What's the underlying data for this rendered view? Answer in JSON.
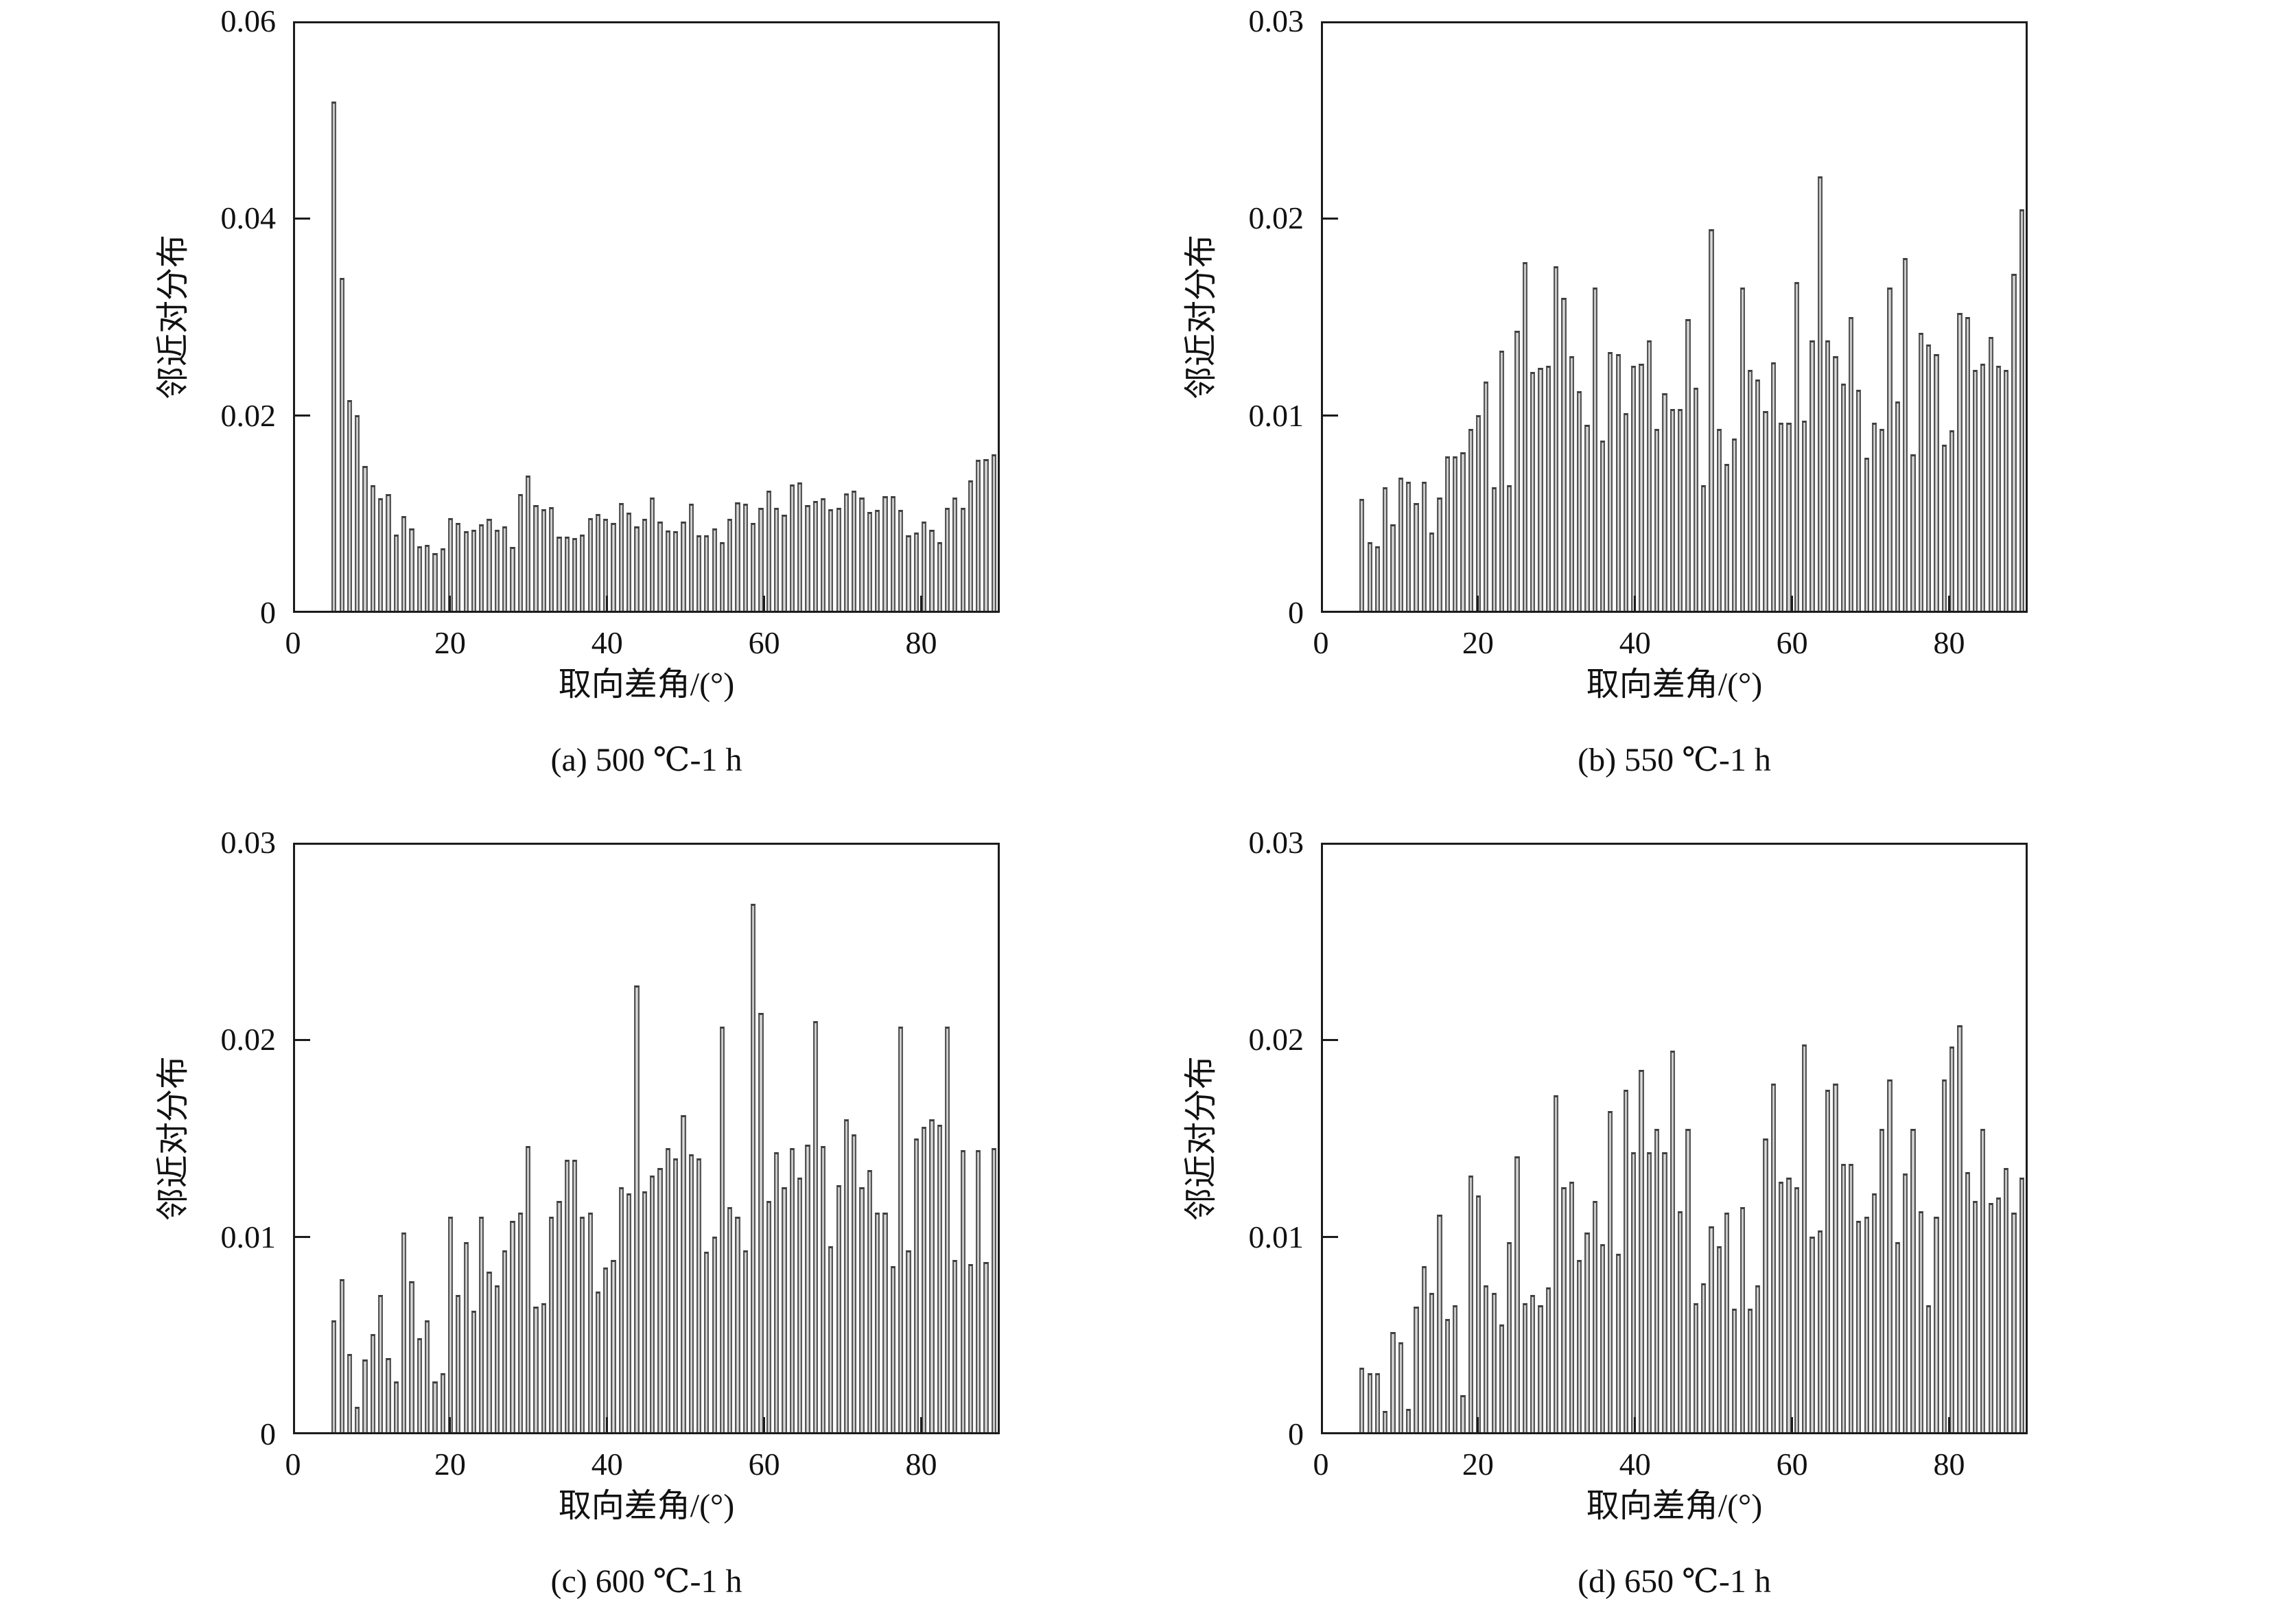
{
  "figure": {
    "background": "#ffffff",
    "bar_fill_light": "#efefef",
    "bar_fill_mid": "#cfcfcf",
    "bar_fill_dark": "#8f8f8f",
    "bar_edge": "#565656",
    "axis_color": "#1c1c1c",
    "text_color": "#111111"
  },
  "chart_data": [
    {
      "id": "a",
      "type": "bar",
      "title": "(a) 500 ℃-1 h",
      "xlabel": "取向差角/(°)",
      "ylabel": "邻近对分布",
      "xlim": [
        0,
        90
      ],
      "ylim": [
        0,
        0.06
      ],
      "x_ticks": [
        0,
        20,
        40,
        60,
        80
      ],
      "x_tick_labels": [
        "0",
        "20",
        "40",
        "60",
        "80"
      ],
      "y_ticks": [
        0,
        0.02,
        0.04,
        0.06
      ],
      "y_tick_labels": [
        "0",
        "0.02",
        "0.04",
        "0.06"
      ],
      "grid": false,
      "legend": null,
      "bin_start": 5,
      "bin_width": 1,
      "values": [
        0.052,
        0.034,
        0.0215,
        0.02,
        0.0148,
        0.0128,
        0.0115,
        0.0119,
        0.0078,
        0.0097,
        0.0084,
        0.0066,
        0.0067,
        0.0059,
        0.0064,
        0.0095,
        0.009,
        0.0081,
        0.0083,
        0.0088,
        0.0094,
        0.0083,
        0.0086,
        0.0065,
        0.0119,
        0.0138,
        0.0108,
        0.0104,
        0.0106,
        0.0076,
        0.0076,
        0.0074,
        0.0078,
        0.0095,
        0.0099,
        0.0094,
        0.009,
        0.011,
        0.01,
        0.0086,
        0.0094,
        0.0116,
        0.0091,
        0.0082,
        0.0081,
        0.0091,
        0.0109,
        0.0077,
        0.0077,
        0.0084,
        0.007,
        0.0094,
        0.0111,
        0.0109,
        0.009,
        0.0105,
        0.0123,
        0.0105,
        0.0098,
        0.0129,
        0.0131,
        0.0108,
        0.0112,
        0.0115,
        0.0104,
        0.0105,
        0.012,
        0.0123,
        0.0116,
        0.0101,
        0.0103,
        0.0117,
        0.0117,
        0.0103,
        0.0077,
        0.008,
        0.0091,
        0.0083,
        0.007,
        0.0105,
        0.0116,
        0.0105,
        0.0133,
        0.0154,
        0.0155,
        0.016
      ]
    },
    {
      "id": "b",
      "type": "bar",
      "title": "(b) 550 ℃-1 h",
      "xlabel": "取向差角/(°)",
      "ylabel": "邻近对分布",
      "xlim": [
        0,
        90
      ],
      "ylim": [
        0,
        0.03
      ],
      "x_ticks": [
        0,
        20,
        40,
        60,
        80
      ],
      "x_tick_labels": [
        "0",
        "20",
        "40",
        "60",
        "80"
      ],
      "y_ticks": [
        0,
        0.01,
        0.02,
        0.03
      ],
      "y_tick_labels": [
        "0",
        "0.01",
        "0.02",
        "0.03"
      ],
      "grid": false,
      "legend": null,
      "bin_start": 5,
      "bin_width": 1,
      "values": [
        0.0057,
        0.0035,
        0.0033,
        0.0063,
        0.0044,
        0.0068,
        0.0066,
        0.0055,
        0.0066,
        0.004,
        0.0058,
        0.0079,
        0.0079,
        0.0081,
        0.0093,
        0.01,
        0.0117,
        0.0063,
        0.0133,
        0.0064,
        0.0143,
        0.0178,
        0.0122,
        0.0124,
        0.0125,
        0.0176,
        0.016,
        0.013,
        0.0112,
        0.0095,
        0.0165,
        0.0087,
        0.0132,
        0.0131,
        0.0101,
        0.0125,
        0.0126,
        0.0138,
        0.0093,
        0.0111,
        0.0103,
        0.0103,
        0.0149,
        0.0114,
        0.0064,
        0.0195,
        0.0093,
        0.0075,
        0.0088,
        0.0165,
        0.0123,
        0.0118,
        0.0102,
        0.0127,
        0.0096,
        0.0096,
        0.0168,
        0.0097,
        0.0138,
        0.0222,
        0.0138,
        0.013,
        0.0116,
        0.015,
        0.0113,
        0.0078,
        0.0096,
        0.0093,
        0.0165,
        0.0107,
        0.018,
        0.008,
        0.0142,
        0.0136,
        0.0131,
        0.0085,
        0.0092,
        0.0152,
        0.015,
        0.0123,
        0.0126,
        0.014,
        0.0125,
        0.0123,
        0.0172,
        0.0205
      ]
    },
    {
      "id": "c",
      "type": "bar",
      "title": "(c) 600 ℃-1 h",
      "xlabel": "取向差角/(°)",
      "ylabel": "邻近对分布",
      "xlim": [
        0,
        90
      ],
      "ylim": [
        0,
        0.03
      ],
      "x_ticks": [
        0,
        20,
        40,
        60,
        80
      ],
      "x_tick_labels": [
        "0",
        "20",
        "40",
        "60",
        "80"
      ],
      "y_ticks": [
        0,
        0.01,
        0.02,
        0.03
      ],
      "y_tick_labels": [
        "0",
        "0.01",
        "0.02",
        "0.03"
      ],
      "grid": false,
      "legend": null,
      "bin_start": 5,
      "bin_width": 1,
      "values": [
        0.0057,
        0.0078,
        0.004,
        0.0013,
        0.0037,
        0.005,
        0.007,
        0.0038,
        0.0026,
        0.0102,
        0.0077,
        0.0048,
        0.0057,
        0.0026,
        0.003,
        0.011,
        0.007,
        0.0097,
        0.0062,
        0.011,
        0.0082,
        0.0075,
        0.0093,
        0.0108,
        0.0112,
        0.0146,
        0.0064,
        0.0066,
        0.011,
        0.0118,
        0.0139,
        0.0139,
        0.011,
        0.0112,
        0.0072,
        0.0084,
        0.0088,
        0.0125,
        0.0122,
        0.0228,
        0.0123,
        0.0131,
        0.0135,
        0.0145,
        0.014,
        0.0162,
        0.0142,
        0.014,
        0.0092,
        0.01,
        0.0207,
        0.0115,
        0.011,
        0.0093,
        0.027,
        0.0214,
        0.0118,
        0.0143,
        0.0125,
        0.0145,
        0.013,
        0.0147,
        0.021,
        0.0146,
        0.0095,
        0.0126,
        0.016,
        0.0152,
        0.0125,
        0.0134,
        0.0112,
        0.0112,
        0.0085,
        0.0207,
        0.0093,
        0.015,
        0.0156,
        0.016,
        0.0157,
        0.0207,
        0.0088,
        0.0144,
        0.0086,
        0.0144,
        0.0087,
        0.0145
      ]
    },
    {
      "id": "d",
      "type": "bar",
      "title": "(d) 650 ℃-1 h",
      "xlabel": "取向差角/(°)",
      "ylabel": "邻近对分布",
      "xlim": [
        0,
        90
      ],
      "ylim": [
        0,
        0.03
      ],
      "x_ticks": [
        0,
        20,
        40,
        60,
        80
      ],
      "x_tick_labels": [
        "0",
        "20",
        "40",
        "60",
        "80"
      ],
      "y_ticks": [
        0,
        0.01,
        0.02,
        0.03
      ],
      "y_tick_labels": [
        "0",
        "0.01",
        "0.02",
        "0.03"
      ],
      "grid": false,
      "legend": null,
      "bin_start": 5,
      "bin_width": 1,
      "values": [
        0.0033,
        0.003,
        0.003,
        0.0011,
        0.0051,
        0.0046,
        0.0012,
        0.0064,
        0.0085,
        0.0071,
        0.0111,
        0.0058,
        0.0065,
        0.0019,
        0.0131,
        0.0121,
        0.0075,
        0.0071,
        0.0055,
        0.0097,
        0.0141,
        0.0066,
        0.007,
        0.0065,
        0.0074,
        0.0172,
        0.0125,
        0.0128,
        0.0088,
        0.0102,
        0.0118,
        0.0096,
        0.0164,
        0.0091,
        0.0175,
        0.0143,
        0.0185,
        0.0143,
        0.0155,
        0.0143,
        0.0195,
        0.0113,
        0.0155,
        0.0066,
        0.0076,
        0.0105,
        0.0095,
        0.0112,
        0.0063,
        0.0115,
        0.0063,
        0.0075,
        0.015,
        0.0178,
        0.0128,
        0.013,
        0.0125,
        0.0198,
        0.01,
        0.0103,
        0.0175,
        0.0178,
        0.0137,
        0.0137,
        0.0108,
        0.011,
        0.0122,
        0.0155,
        0.018,
        0.0097,
        0.0132,
        0.0155,
        0.0113,
        0.0065,
        0.011,
        0.018,
        0.0197,
        0.0208,
        0.0133,
        0.0118,
        0.0155,
        0.0117,
        0.012,
        0.0135,
        0.0112,
        0.013
      ]
    }
  ]
}
